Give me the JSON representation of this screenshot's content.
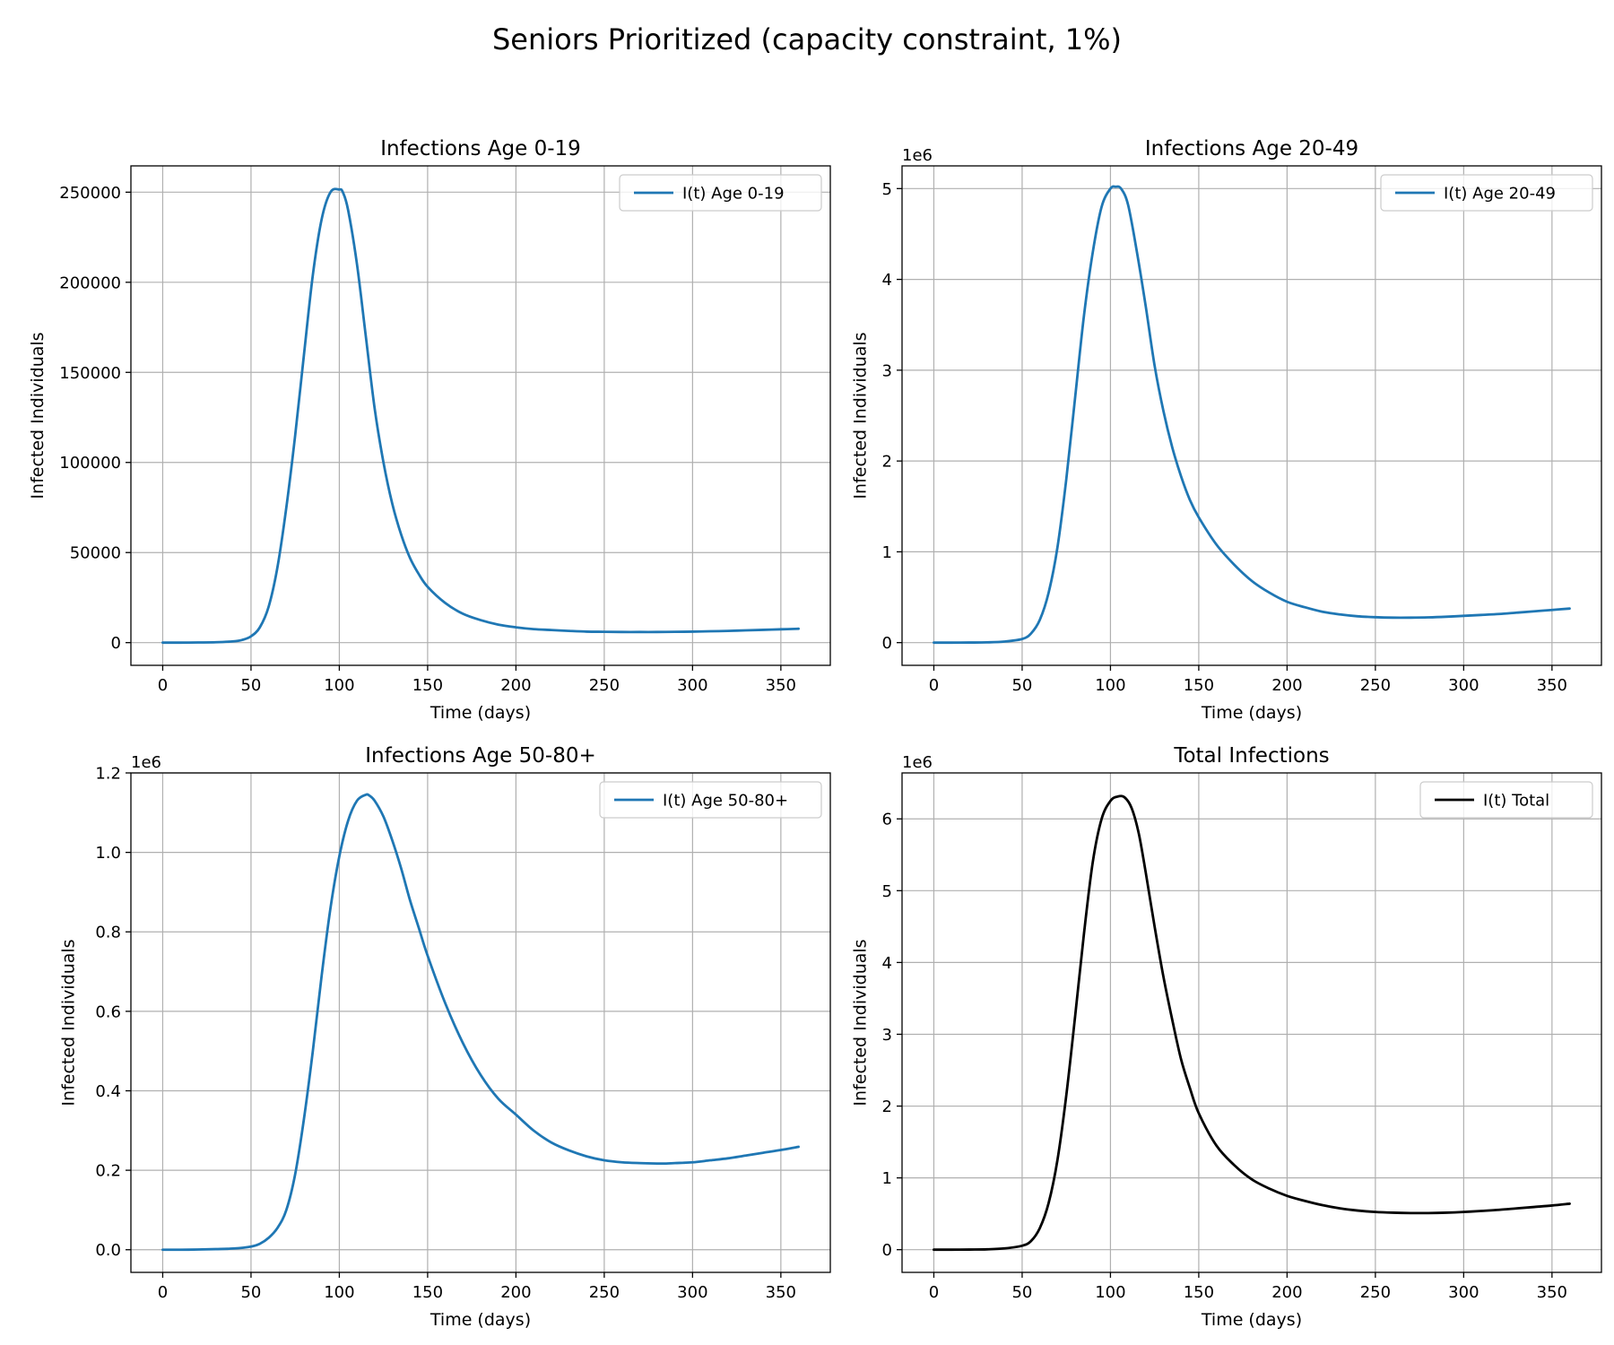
{
  "figure": {
    "title": "Seniors Prioritized (capacity constraint, 1%)"
  },
  "chart_data": [
    {
      "type": "line",
      "title": "Infections Age 0-19",
      "xlabel": "Time (days)",
      "ylabel": "Infected Individuals",
      "xlim": [
        -18,
        378
      ],
      "ylim": [
        -12600,
        264600
      ],
      "xticks": [
        0,
        50,
        100,
        150,
        200,
        250,
        300,
        350
      ],
      "xtick_labels": [
        "0",
        "50",
        "100",
        "150",
        "200",
        "250",
        "300",
        "350"
      ],
      "yticks": [
        0,
        50000,
        100000,
        150000,
        200000,
        250000
      ],
      "ytick_labels": [
        "0",
        "50000",
        "100000",
        "150000",
        "200000",
        "250000"
      ],
      "offset_text": "",
      "grid": true,
      "legend_position": "upper right",
      "series": [
        {
          "name": "I(t) Age 0-19",
          "color": "#1f77b4",
          "x": [
            0,
            10,
            20,
            30,
            40,
            45,
            50,
            55,
            60,
            65,
            70,
            75,
            80,
            85,
            90,
            95,
            100,
            102,
            105,
            110,
            115,
            120,
            125,
            130,
            135,
            140,
            145,
            150,
            160,
            170,
            180,
            190,
            200,
            210,
            220,
            230,
            240,
            250,
            260,
            270,
            280,
            290,
            300,
            310,
            320,
            330,
            340,
            350,
            360
          ],
          "y": [
            0,
            0,
            80,
            200,
            700,
            1500,
            3500,
            8500,
            20000,
            42000,
            75000,
            115000,
            160000,
            204000,
            235000,
            250000,
            251500,
            250000,
            240000,
            210000,
            170000,
            130000,
            100000,
            77000,
            60000,
            47000,
            38000,
            31000,
            22000,
            16000,
            12500,
            10000,
            8500,
            7500,
            7000,
            6500,
            6100,
            6000,
            5900,
            5900,
            5900,
            6000,
            6100,
            6300,
            6500,
            6800,
            7100,
            7400,
            7700
          ]
        }
      ]
    },
    {
      "type": "line",
      "title": "Infections Age 20-49",
      "xlabel": "Time (days)",
      "ylabel": "Infected Individuals",
      "xlim": [
        -18,
        378
      ],
      "ylim": [
        -250000,
        5250000
      ],
      "xticks": [
        0,
        50,
        100,
        150,
        200,
        250,
        300,
        350
      ],
      "xtick_labels": [
        "0",
        "50",
        "100",
        "150",
        "200",
        "250",
        "300",
        "350"
      ],
      "yticks": [
        0,
        1000000,
        2000000,
        3000000,
        4000000,
        5000000
      ],
      "ytick_labels": [
        "0",
        "1",
        "2",
        "3",
        "4",
        "5"
      ],
      "offset_text": "1e6",
      "grid": true,
      "legend_position": "upper right",
      "series": [
        {
          "name": "I(t) Age 20-49",
          "color": "#1f77b4",
          "x": [
            0,
            10,
            20,
            30,
            40,
            50,
            55,
            60,
            65,
            70,
            75,
            80,
            85,
            90,
            95,
            100,
            103,
            106,
            110,
            115,
            120,
            125,
            130,
            135,
            140,
            145,
            150,
            160,
            170,
            180,
            190,
            200,
            210,
            220,
            230,
            240,
            250,
            260,
            270,
            280,
            290,
            300,
            310,
            320,
            330,
            340,
            350,
            360
          ],
          "y": [
            0,
            0,
            1000,
            3000,
            12000,
            40000,
            100000,
            250000,
            550000,
            1050000,
            1800000,
            2700000,
            3600000,
            4300000,
            4800000,
            5000000,
            5020000,
            5000000,
            4820000,
            4300000,
            3700000,
            3050000,
            2550000,
            2150000,
            1830000,
            1570000,
            1380000,
            1080000,
            860000,
            680000,
            550000,
            450000,
            390000,
            340000,
            310000,
            290000,
            280000,
            275000,
            275000,
            278000,
            285000,
            295000,
            305000,
            315000,
            330000,
            345000,
            360000,
            375000
          ]
        }
      ]
    },
    {
      "type": "line",
      "title": "Infections Age 50-80+",
      "xlabel": "Time (days)",
      "ylabel": "Infected Individuals",
      "xlim": [
        -18,
        378
      ],
      "ylim": [
        -57000,
        1200000
      ],
      "xticks": [
        0,
        50,
        100,
        150,
        200,
        250,
        300,
        350
      ],
      "xtick_labels": [
        "0",
        "50",
        "100",
        "150",
        "200",
        "250",
        "300",
        "350"
      ],
      "yticks": [
        0,
        200000,
        400000,
        600000,
        800000,
        1000000,
        1200000
      ],
      "ytick_labels": [
        "0.0",
        "0.2",
        "0.4",
        "0.6",
        "0.8",
        "1.0",
        "1.2"
      ],
      "offset_text": "1e6",
      "grid": true,
      "legend_position": "upper right",
      "series": [
        {
          "name": "I(t) Age 50-80+",
          "color": "#1f77b4",
          "x": [
            0,
            10,
            20,
            30,
            40,
            50,
            55,
            60,
            65,
            70,
            75,
            80,
            85,
            90,
            95,
            100,
            105,
            110,
            115,
            117,
            120,
            125,
            130,
            135,
            140,
            145,
            150,
            160,
            170,
            180,
            190,
            200,
            210,
            220,
            230,
            240,
            250,
            260,
            270,
            280,
            285,
            290,
            300,
            310,
            320,
            330,
            340,
            350,
            360
          ],
          "y": [
            0,
            0,
            500,
            1500,
            3000,
            8000,
            15000,
            30000,
            55000,
            100000,
            190000,
            330000,
            500000,
            690000,
            860000,
            990000,
            1080000,
            1130000,
            1145000,
            1143000,
            1130000,
            1090000,
            1030000,
            960000,
            880000,
            810000,
            740000,
            620000,
            520000,
            440000,
            380000,
            340000,
            300000,
            270000,
            250000,
            235000,
            225000,
            220000,
            218000,
            217000,
            217000,
            218000,
            220000,
            225000,
            230000,
            237000,
            244000,
            251000,
            259000
          ]
        }
      ]
    },
    {
      "type": "line",
      "title": "Total Infections",
      "xlabel": "Time (days)",
      "ylabel": "Infected Individuals",
      "xlim": [
        -18,
        378
      ],
      "ylim": [
        -316000,
        6640000
      ],
      "xticks": [
        0,
        50,
        100,
        150,
        200,
        250,
        300,
        350
      ],
      "xtick_labels": [
        "0",
        "50",
        "100",
        "150",
        "200",
        "250",
        "300",
        "350"
      ],
      "yticks": [
        0,
        1000000,
        2000000,
        3000000,
        4000000,
        5000000,
        6000000
      ],
      "ytick_labels": [
        "0",
        "1",
        "2",
        "3",
        "4",
        "5",
        "6"
      ],
      "offset_text": "1e6",
      "grid": true,
      "legend_position": "upper right",
      "series": [
        {
          "name": "I(t) Total",
          "color": "#000000",
          "x": [
            0,
            10,
            20,
            30,
            40,
            50,
            55,
            60,
            65,
            70,
            75,
            80,
            85,
            90,
            95,
            100,
            104,
            108,
            112,
            116,
            120,
            125,
            130,
            135,
            140,
            145,
            150,
            160,
            170,
            180,
            190,
            200,
            210,
            220,
            230,
            240,
            250,
            260,
            270,
            280,
            290,
            300,
            310,
            320,
            330,
            340,
            350,
            360
          ],
          "y": [
            0,
            0,
            2000,
            5000,
            18000,
            55000,
            120000,
            300000,
            650000,
            1250000,
            2150000,
            3250000,
            4400000,
            5400000,
            6000000,
            6250000,
            6310000,
            6300000,
            6150000,
            5800000,
            5250000,
            4500000,
            3800000,
            3200000,
            2650000,
            2250000,
            1900000,
            1450000,
            1180000,
            980000,
            850000,
            750000,
            680000,
            620000,
            575000,
            545000,
            525000,
            515000,
            510000,
            510000,
            515000,
            525000,
            540000,
            555000,
            575000,
            595000,
            615000,
            640000
          ]
        }
      ]
    }
  ]
}
